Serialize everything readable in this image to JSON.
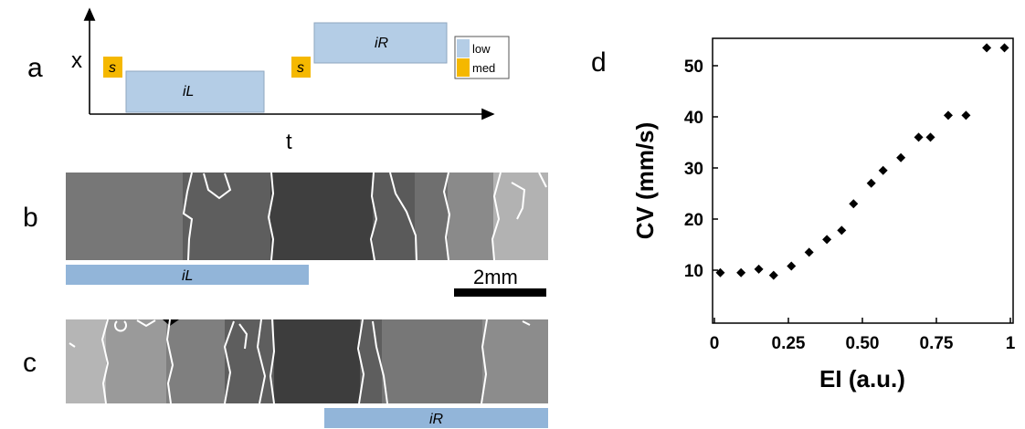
{
  "panels": {
    "a": "a",
    "b": "b",
    "c": "c",
    "d": "d"
  },
  "schematic": {
    "x_label": "x",
    "t_label": "t",
    "s_label": "s",
    "iL_label": "iL",
    "iR_label": "iR",
    "legend": [
      {
        "label": "low",
        "color": "#b4cde6"
      },
      {
        "label": "med",
        "color": "#f5b800"
      }
    ]
  },
  "strips": {
    "b_bar_label": "iL",
    "c_bar_label": "iR",
    "scale_label": "2mm",
    "bar_color": "#92b5d9"
  },
  "chart_data": {
    "type": "scatter",
    "title": "",
    "xlabel": "EI (a.u.)",
    "ylabel": "CV (mm/s)",
    "xlim": [
      0,
      1
    ],
    "ylim": [
      0,
      55
    ],
    "xticks": [
      "0",
      "0.25",
      "0.50",
      "0.75",
      "1"
    ],
    "yticks": [
      "10",
      "20",
      "30",
      "40",
      "50"
    ],
    "xtick_values": [
      0,
      0.25,
      0.5,
      0.75,
      1
    ],
    "ytick_values": [
      10,
      20,
      30,
      40,
      50
    ],
    "series": [
      {
        "x": [
          0.02,
          0.09,
          0.15,
          0.2,
          0.26,
          0.32,
          0.38,
          0.43,
          0.47,
          0.53,
          0.57,
          0.63,
          0.69,
          0.73,
          0.79,
          0.85,
          0.92,
          0.98
        ],
        "y": [
          9.5,
          9.5,
          10.2,
          9.0,
          10.8,
          13.5,
          16.0,
          17.8,
          23.0,
          27.0,
          29.5,
          32.0,
          36.0,
          36.0,
          40.3,
          40.3,
          53.5,
          53.5
        ]
      }
    ],
    "grid": false,
    "marker": "diamond"
  }
}
